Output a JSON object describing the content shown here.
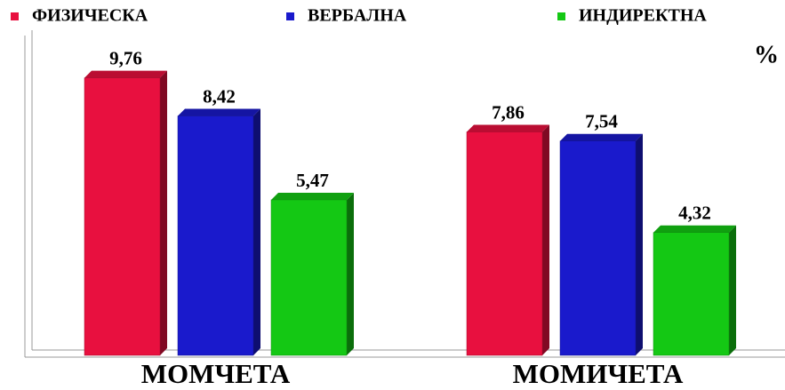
{
  "chart_data": {
    "type": "bar",
    "categories": [
      "МОМЧЕТА",
      "МОМИЧЕТА"
    ],
    "series": [
      {
        "name": "ФИЗИЧЕСКА",
        "color": "#e8103f",
        "values": [
          9.76,
          7.86
        ],
        "value_labels": [
          "9,76",
          "7,86"
        ]
      },
      {
        "name": "ВЕРБАЛНА",
        "color": "#1a1acc",
        "values": [
          8.42,
          7.54
        ],
        "value_labels": [
          "8,42",
          "7,54"
        ]
      },
      {
        "name": "ИНДИРЕКТНА",
        "color": "#14c814",
        "values": [
          5.47,
          4.32
        ],
        "value_labels": [
          "5,47",
          "4,32"
        ]
      }
    ],
    "y_label": "%",
    "ylim": [
      0,
      11
    ],
    "legend": "top"
  }
}
